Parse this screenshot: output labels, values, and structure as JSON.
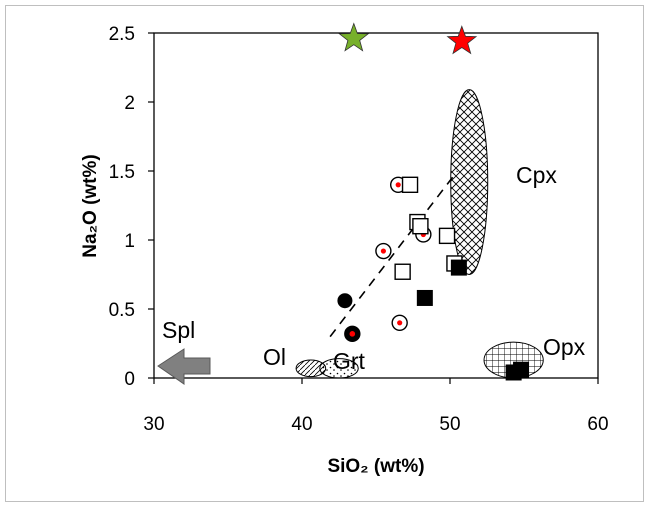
{
  "chart_data": {
    "type": "scatter",
    "title": "",
    "xlabel": "SiO₂ (wt%)",
    "ylabel": "Na₂O (wt%)",
    "xlim": [
      30,
      60
    ],
    "ylim": [
      0,
      2.5
    ],
    "x_ticks": [
      "30",
      "40",
      "50",
      "60"
    ],
    "y_ticks": [
      "0",
      "0.5",
      "1",
      "1.5",
      "2",
      "2.5"
    ],
    "grid": false,
    "series": [
      {
        "marker": "circle-dot",
        "color": "#ff0000",
        "points": [
          [
            46.5,
            1.4
          ],
          [
            45.5,
            0.92
          ],
          [
            48.2,
            1.04
          ],
          [
            46.6,
            0.4
          ],
          [
            43.4,
            0.32
          ]
        ]
      },
      {
        "marker": "open-square",
        "color": "#000000",
        "points": [
          [
            47.3,
            1.4
          ],
          [
            47.8,
            1.13
          ],
          [
            48.0,
            1.1
          ],
          [
            49.8,
            1.03
          ],
          [
            50.3,
            0.83
          ],
          [
            46.8,
            0.77
          ]
        ]
      },
      {
        "marker": "filled-circle",
        "color": "#000000",
        "points": [
          [
            42.9,
            0.56
          ]
        ]
      },
      {
        "marker": "filled-square",
        "color": "#000000",
        "points": [
          [
            48.3,
            0.58
          ],
          [
            50.6,
            0.8
          ],
          [
            54.3,
            0.04
          ],
          [
            54.8,
            0.06
          ]
        ]
      },
      {
        "marker": "star",
        "color": "#77b02a",
        "points": [
          [
            43.5,
            2.46
          ]
        ]
      },
      {
        "marker": "star",
        "color": "#ff0000",
        "points": [
          [
            50.8,
            2.44
          ]
        ]
      }
    ],
    "trend_line": {
      "style": "dashed",
      "from": [
        41.9,
        0.3
      ],
      "to": [
        50.5,
        1.5
      ]
    },
    "mineral_fields": [
      {
        "label": "Cpx",
        "pattern": "crosshatch",
        "center": [
          51.3,
          1.42
        ],
        "rx": 1.25,
        "ry": 0.67
      },
      {
        "label": "Opx",
        "pattern": "grid",
        "center": [
          54.3,
          0.13
        ],
        "rx": 2.0,
        "ry": 0.13
      },
      {
        "label": "Ol",
        "pattern": "diagonal",
        "center": [
          40.6,
          0.07
        ],
        "rx": 1.0,
        "ry": 0.06
      },
      {
        "label": "Grt",
        "pattern": "speckle",
        "center": [
          42.5,
          0.07
        ],
        "rx": 1.3,
        "ry": 0.07
      }
    ],
    "arrow": {
      "label": "Spl",
      "color": "#7f7f7f",
      "points_to": "low SiO₂"
    }
  }
}
